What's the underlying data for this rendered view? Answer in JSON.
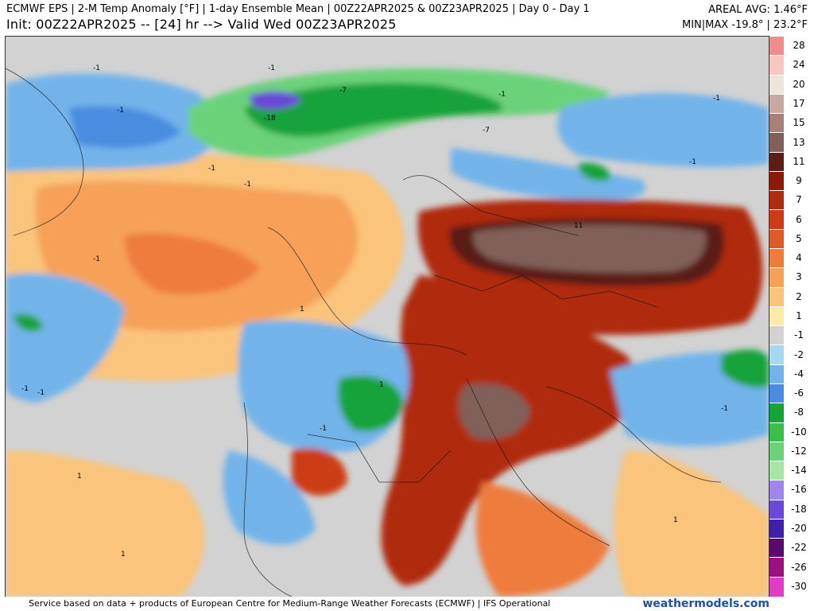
{
  "header": {
    "title_line": "ECMWF EPS | 2-M Temp Anomaly [°F] | 1-day Ensemble Mean | 00Z22APR2025 & 00Z23APR2025 | Day 0 - Day 1",
    "init_line": "Init: 00Z22APR2025 -- [24] hr --> Valid Wed 00Z23APR2025",
    "areal_avg": "AREAL AVG: 1.46°F",
    "min_max": "MIN|MAX -19.8° | 23.2°F"
  },
  "colorbar": {
    "labels": [
      "28",
      "24",
      "20",
      "17",
      "15",
      "13",
      "11",
      "9",
      "7",
      "6",
      "5",
      "4",
      "3",
      "2",
      "1",
      "-1",
      "-2",
      "-4",
      "-6",
      "-8",
      "-10",
      "-12",
      "-14",
      "-16",
      "-18",
      "-20",
      "-22",
      "-26",
      "-30"
    ],
    "colors": [
      "#f08c8c",
      "#f8c8c0",
      "#ece6d8",
      "#c8a8a0",
      "#a88078",
      "#806058",
      "#5a1e14",
      "#8c1a0a",
      "#b02a10",
      "#cc3c18",
      "#e05a28",
      "#ee7c3c",
      "#f6a058",
      "#fac47c",
      "#fceaa8",
      "#d2d2d2",
      "#a8d8ee",
      "#72b4ea",
      "#4a8ce0",
      "#16a33a",
      "#3cbe4a",
      "#6cd27a",
      "#a8e6a8",
      "#9f86ec",
      "#6a48d8",
      "#4020a8",
      "#5a0a6a",
      "#9a1280",
      "#e03cc8"
    ]
  },
  "map": {
    "contour_labels": [
      "-1",
      "-1",
      "-1",
      "-7",
      "-7",
      "-18",
      "-1",
      "-1",
      "-1",
      "-1",
      "-1",
      "-1",
      "-1",
      "-1",
      "1",
      "11",
      "1",
      "1",
      "-1",
      "1",
      "1",
      "-1"
    ]
  },
  "footer": {
    "credit": "Service based on data + products of European Centre for Medium-Range Weather Forecasts (ECMWF) | IFS Operational",
    "brand": "weathermodels.com"
  }
}
